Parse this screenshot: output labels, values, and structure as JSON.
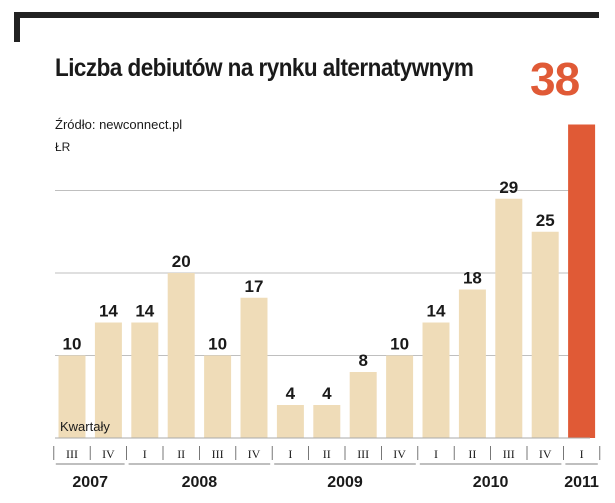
{
  "header": {
    "title": "Liczba debiutów na rynku alternatywnym",
    "source": "Źródło: newconnect.pl",
    "unit": "ŁR",
    "highlight_value": "38"
  },
  "colors": {
    "bar": "#efdcb8",
    "highlight_bar": "#e05a36",
    "grid": "#aaaaaa",
    "text": "#1a1a1a"
  },
  "chart_data": {
    "type": "bar",
    "title": "Liczba debiutów na rynku alternatywnym",
    "xlabel": "Kwartały",
    "ylabel": "ŁR",
    "ylim": [
      0,
      40
    ],
    "grid": true,
    "categories": [
      "III",
      "IV",
      "I",
      "II",
      "III",
      "IV",
      "I",
      "II",
      "III",
      "IV",
      "I",
      "II",
      "III",
      "IV",
      "I"
    ],
    "years": [
      {
        "label": "2007",
        "start": 0,
        "end": 1
      },
      {
        "label": "2008",
        "start": 2,
        "end": 5
      },
      {
        "label": "2009",
        "start": 6,
        "end": 9
      },
      {
        "label": "2010",
        "start": 10,
        "end": 13
      },
      {
        "label": "2011",
        "start": 14,
        "end": 14
      }
    ],
    "values": [
      10,
      14,
      14,
      20,
      10,
      17,
      4,
      4,
      8,
      10,
      14,
      18,
      29,
      25,
      38
    ],
    "highlight_index": 14
  }
}
